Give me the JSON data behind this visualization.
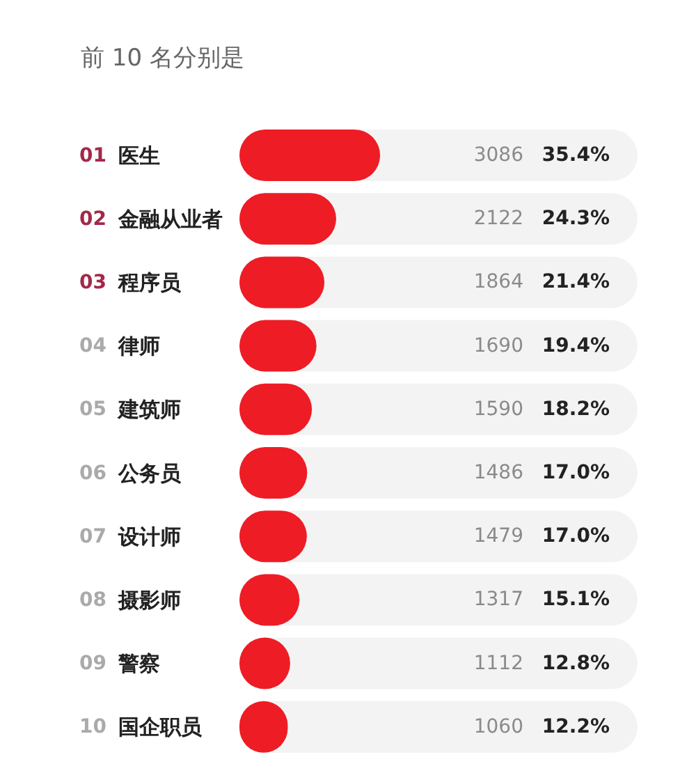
{
  "chart_data": {
    "type": "bar",
    "orientation": "horizontal",
    "title": "前 10 名分别是",
    "categories": [
      "01 医生",
      "02 金融从业者",
      "03 程序员",
      "04 律师",
      "05 建筑师",
      "06 公务员",
      "07 设计师",
      "08 摄影师",
      "09 警察",
      "10 国企职员"
    ],
    "values": [
      3086,
      2122,
      1864,
      1690,
      1590,
      1486,
      1479,
      1317,
      1112,
      1060
    ],
    "color": "#ee1c25",
    "data_labels": true,
    "annotations": [
      "35.4%",
      "24.3%",
      "21.4%",
      "19.4%",
      "18.2%",
      "17.0%",
      "17.0%",
      "15.1%",
      "12.8%",
      "12.2%"
    ]
  }
}
